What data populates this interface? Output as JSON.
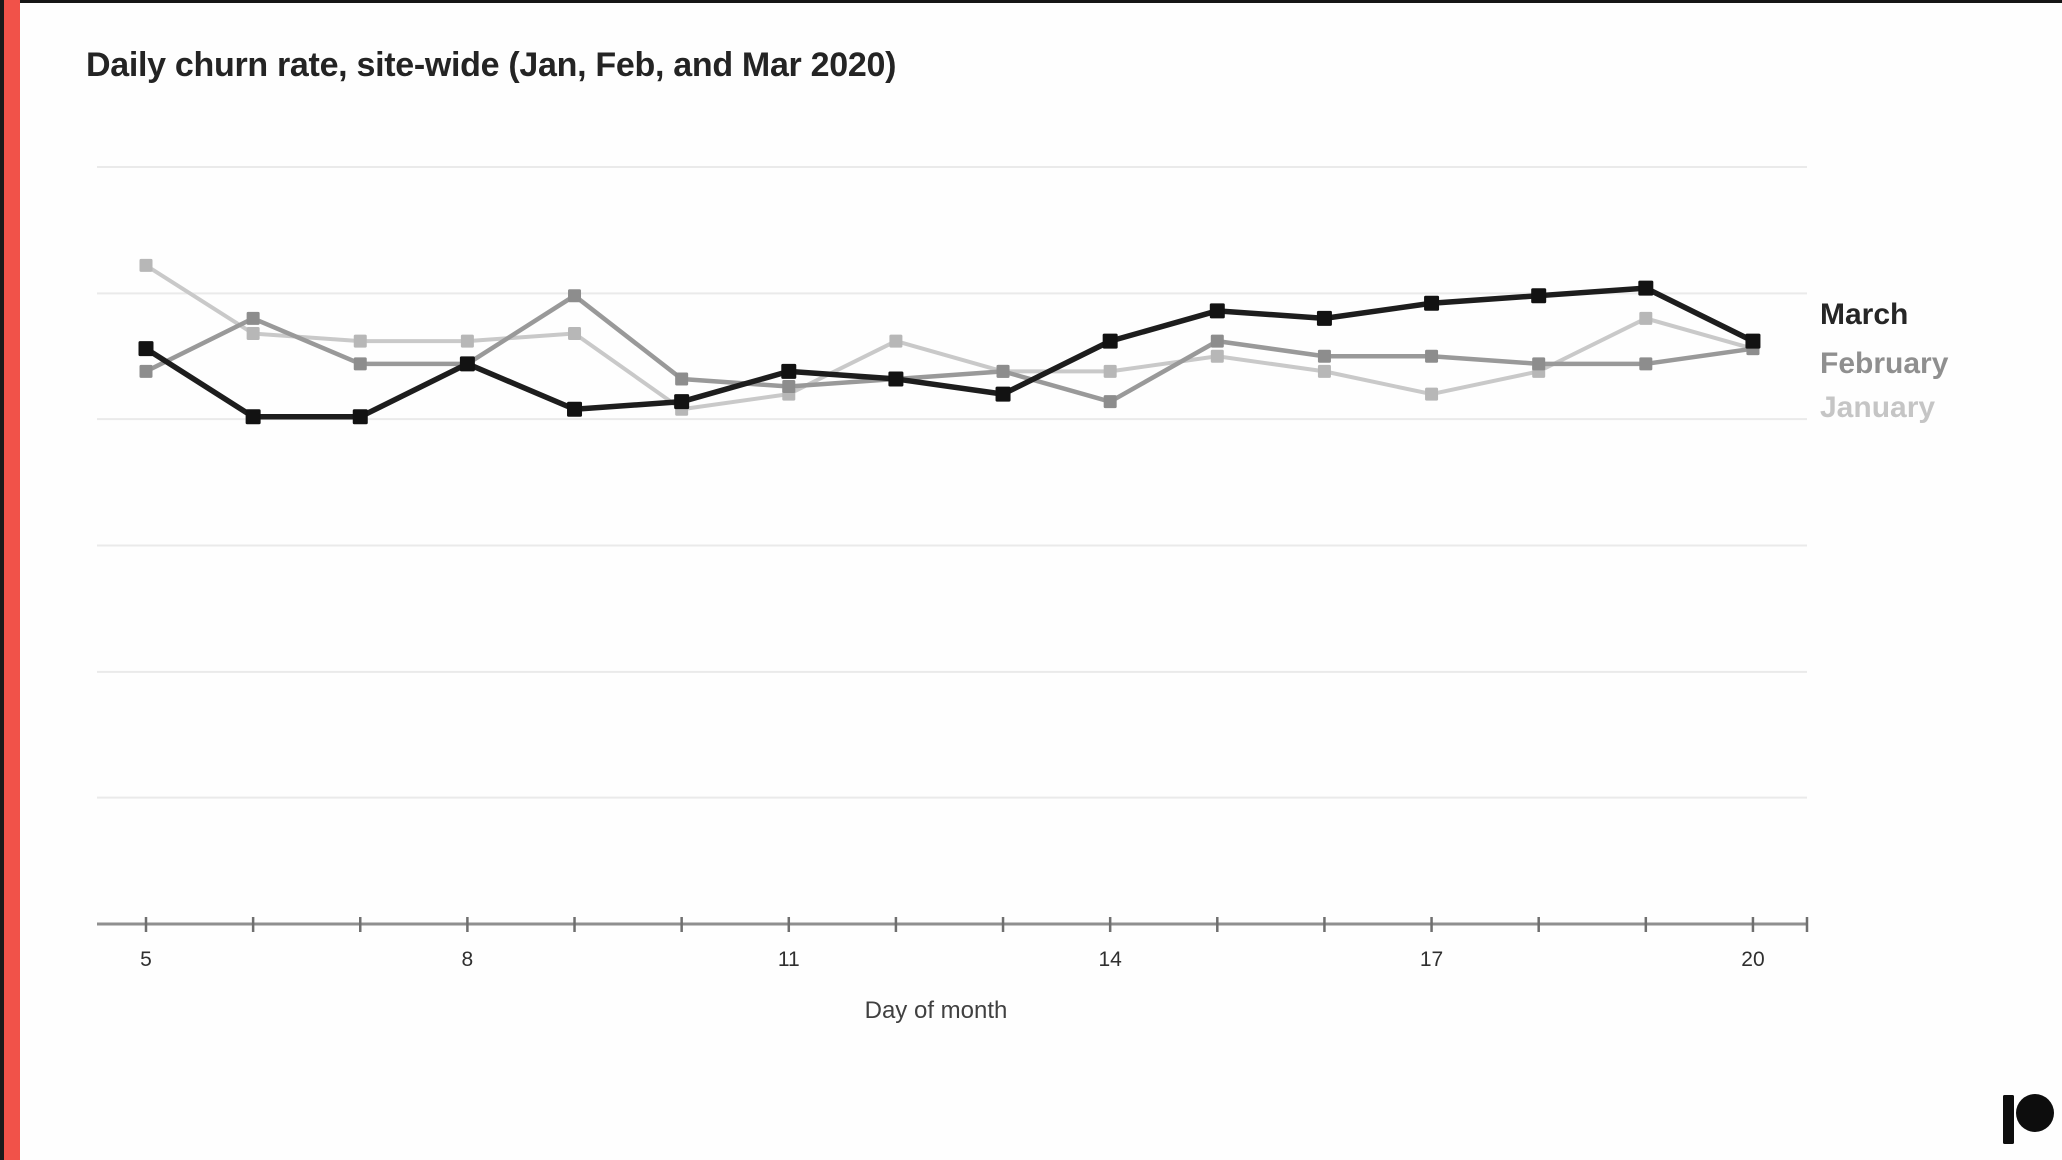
{
  "page": {
    "background": "#fefefe"
  },
  "accent_bar": {
    "color": "#f15249",
    "edge_color": "#1a1a1a"
  },
  "header": {
    "title": "Daily churn rate, site-wide (Jan, Feb, and Mar 2020)"
  },
  "chart_data": {
    "type": "line",
    "title": "Daily churn rate, site-wide (Jan, Feb, and Mar 2020)",
    "xlabel": "Day of month",
    "ylabel": "",
    "x": [
      5,
      6,
      7,
      8,
      9,
      10,
      11,
      12,
      13,
      14,
      15,
      16,
      17,
      18,
      19,
      20
    ],
    "x_tick_labels": [
      "5",
      "8",
      "11",
      "14",
      "17",
      "20"
    ],
    "x_ticks_every_day": true,
    "ylim": [
      0,
      10
    ],
    "y_axis_labels_shown": false,
    "gridline_values": [
      1.67,
      3.33,
      5.0,
      6.67,
      8.33,
      10.0
    ],
    "grid": true,
    "legend_position": "right",
    "series": [
      {
        "name": "January",
        "color": "#c9c9c9",
        "marker_color": "#b7b7b7",
        "values": [
          8.7,
          7.8,
          7.7,
          7.7,
          7.8,
          6.8,
          7.0,
          7.7,
          7.3,
          7.3,
          7.5,
          7.3,
          7.0,
          7.3,
          8.0,
          7.6
        ]
      },
      {
        "name": "February",
        "color": "#999999",
        "marker_color": "#8d8d8d",
        "values": [
          7.3,
          8.0,
          7.4,
          7.4,
          8.3,
          7.2,
          7.1,
          7.2,
          7.3,
          6.9,
          7.7,
          7.5,
          7.5,
          7.4,
          7.4,
          7.6
        ]
      },
      {
        "name": "March",
        "color": "#1d1d1d",
        "marker_color": "#121212",
        "values": [
          7.6,
          6.7,
          6.7,
          7.4,
          6.8,
          6.9,
          7.3,
          7.2,
          7.0,
          7.7,
          8.1,
          8.0,
          8.2,
          8.3,
          8.4,
          7.7
        ]
      }
    ]
  },
  "legend": {
    "entries": [
      {
        "label": "March",
        "color": "#262626"
      },
      {
        "label": "February",
        "color": "#8f8f8f"
      },
      {
        "label": "January",
        "color": "#c5c5c5"
      }
    ]
  },
  "footer": {
    "logo": "patreon-logo",
    "logo_color": "#0d0d0d"
  }
}
